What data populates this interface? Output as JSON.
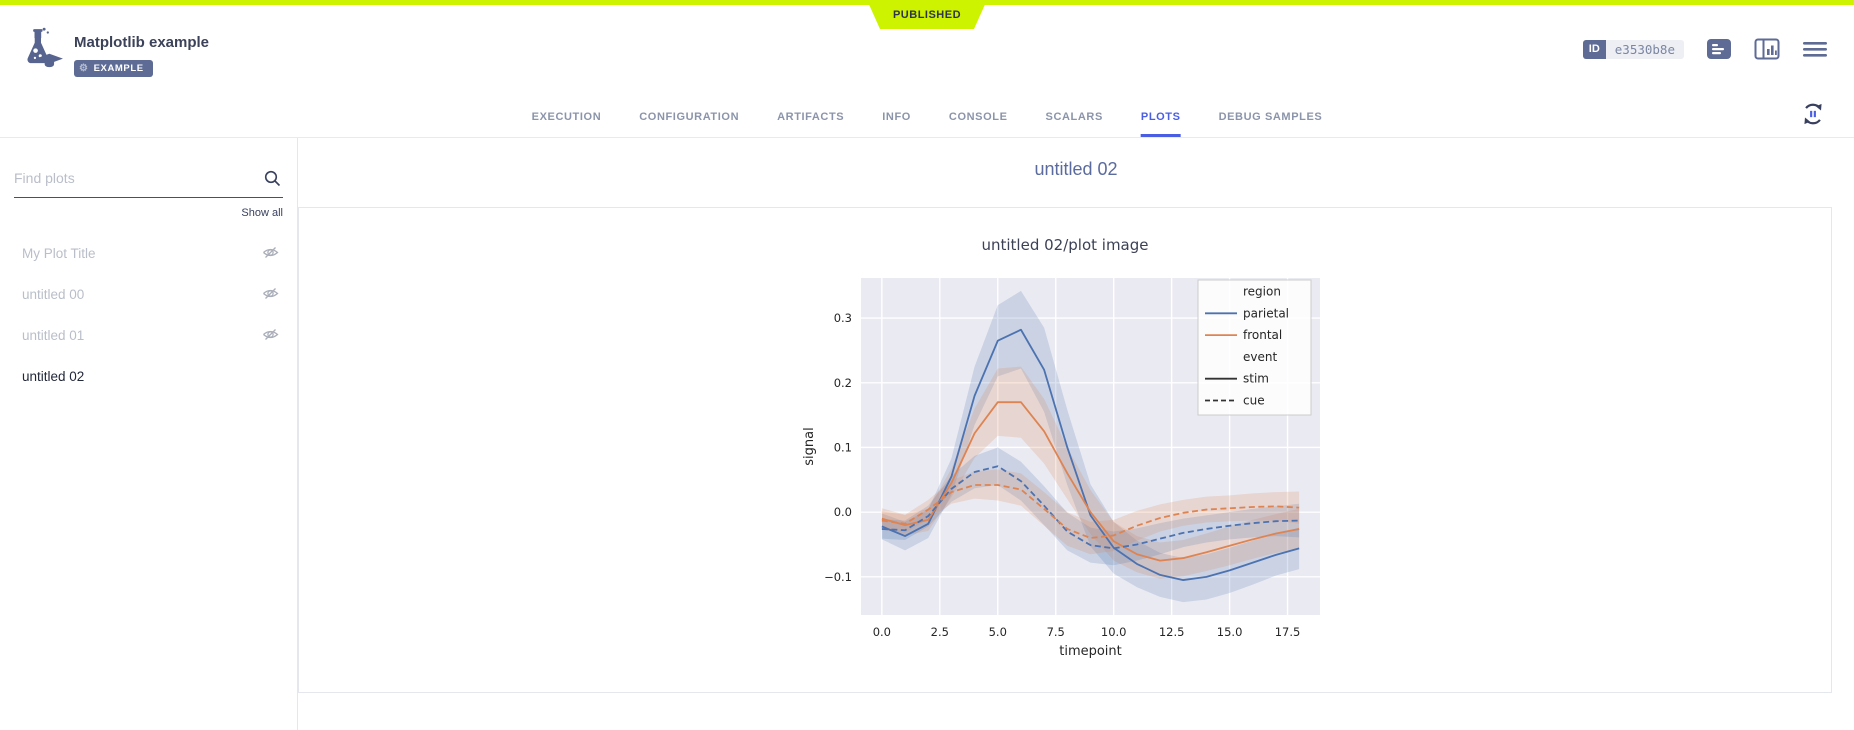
{
  "status_bar": {
    "label": "PUBLISHED",
    "color": "#cdf300"
  },
  "header": {
    "title": "Matplotlib example",
    "badge": "EXAMPLE",
    "id_label": "ID",
    "id_value": "e3530b8e",
    "icons": [
      "app-logo-flask-graduation",
      "gear-icon",
      "details-icon",
      "info-panel-icon",
      "menu-icon",
      "auto-refresh-pause-icon"
    ],
    "tabs": [
      {
        "label": "EXECUTION",
        "active": false
      },
      {
        "label": "CONFIGURATION",
        "active": false
      },
      {
        "label": "ARTIFACTS",
        "active": false
      },
      {
        "label": "INFO",
        "active": false
      },
      {
        "label": "CONSOLE",
        "active": false
      },
      {
        "label": "SCALARS",
        "active": false
      },
      {
        "label": "PLOTS",
        "active": true
      },
      {
        "label": "DEBUG SAMPLES",
        "active": false
      }
    ],
    "accent_color": "#4a5ee4"
  },
  "sidebar": {
    "search_placeholder": "Find plots",
    "show_all": "Show all",
    "items": [
      {
        "label": "My Plot Title",
        "hidden": true,
        "selected": false
      },
      {
        "label": "untitled 00",
        "hidden": true,
        "selected": false
      },
      {
        "label": "untitled 01",
        "hidden": true,
        "selected": false
      },
      {
        "label": "untitled 02",
        "hidden": false,
        "selected": true
      }
    ]
  },
  "main": {
    "section_title": "untitled 02",
    "chart_title": "untitled 02/plot image"
  },
  "chart_data": {
    "type": "line",
    "title": "untitled 02/plot image",
    "xlabel": "timepoint",
    "ylabel": "signal",
    "xlim": [
      -0.9,
      18.9
    ],
    "ylim": [
      -0.159,
      0.362
    ],
    "x_ticks": [
      0,
      2.5,
      5,
      7.5,
      10,
      12.5,
      15,
      17.5
    ],
    "x_tick_labels": [
      "0.0",
      "2.5",
      "5.0",
      "7.5",
      "10.0",
      "12.5",
      "15.0",
      "17.5"
    ],
    "y_ticks": [
      -0.1,
      0.0,
      0.1,
      0.2,
      0.3
    ],
    "y_tick_labels": [
      "−0.1",
      "0.0",
      "0.1",
      "0.2",
      "0.3"
    ],
    "grid": true,
    "plot_bg": "#eaeaf2",
    "grid_color": "#ffffff",
    "x": [
      0,
      1,
      2,
      3,
      4,
      5,
      6,
      7,
      8,
      9,
      10,
      11,
      12,
      13,
      14,
      15,
      16,
      17,
      18
    ],
    "series": [
      {
        "name": "parietal-stim",
        "region": "parietal",
        "event": "stim",
        "color": "#4C72B0",
        "dash": false,
        "values": [
          -0.022,
          -0.037,
          -0.018,
          0.055,
          0.18,
          0.265,
          0.282,
          0.22,
          0.1,
          -0.005,
          -0.055,
          -0.08,
          -0.097,
          -0.105,
          -0.1,
          -0.09,
          -0.078,
          -0.066,
          -0.056
        ],
        "ci": [
          0.02,
          0.022,
          0.022,
          0.028,
          0.045,
          0.055,
          0.06,
          0.065,
          0.058,
          0.048,
          0.04,
          0.036,
          0.034,
          0.034,
          0.035,
          0.035,
          0.034,
          0.032,
          0.032
        ]
      },
      {
        "name": "frontal-stim",
        "region": "frontal",
        "event": "stim",
        "color": "#DD8452",
        "dash": false,
        "values": [
          -0.01,
          -0.02,
          -0.012,
          0.045,
          0.122,
          0.17,
          0.17,
          0.125,
          0.06,
          0.0,
          -0.045,
          -0.065,
          -0.075,
          -0.071,
          -0.062,
          -0.052,
          -0.042,
          -0.033,
          -0.026
        ],
        "ci": [
          0.016,
          0.016,
          0.017,
          0.022,
          0.038,
          0.052,
          0.055,
          0.05,
          0.04,
          0.034,
          0.03,
          0.028,
          0.028,
          0.028,
          0.029,
          0.03,
          0.03,
          0.03,
          0.031
        ]
      },
      {
        "name": "parietal-cue",
        "region": "parietal",
        "event": "cue",
        "color": "#4C72B0",
        "dash": true,
        "values": [
          -0.026,
          -0.028,
          -0.006,
          0.036,
          0.062,
          0.071,
          0.048,
          0.01,
          -0.03,
          -0.051,
          -0.056,
          -0.05,
          -0.041,
          -0.032,
          -0.026,
          -0.021,
          -0.017,
          -0.014,
          -0.013
        ],
        "ci": [
          0.015,
          0.015,
          0.016,
          0.02,
          0.025,
          0.029,
          0.03,
          0.03,
          0.029,
          0.027,
          0.026,
          0.025,
          0.024,
          0.022,
          0.021,
          0.021,
          0.022,
          0.023,
          0.026
        ]
      },
      {
        "name": "frontal-cue",
        "region": "frontal",
        "event": "cue",
        "color": "#DD8452",
        "dash": true,
        "values": [
          -0.013,
          -0.018,
          0.004,
          0.031,
          0.042,
          0.042,
          0.035,
          0.005,
          -0.026,
          -0.04,
          -0.036,
          -0.021,
          -0.009,
          -0.001,
          0.004,
          0.006,
          0.008,
          0.009,
          0.007
        ],
        "ci": [
          0.014,
          0.014,
          0.015,
          0.018,
          0.021,
          0.024,
          0.025,
          0.026,
          0.026,
          0.025,
          0.024,
          0.023,
          0.021,
          0.02,
          0.02,
          0.02,
          0.021,
          0.022,
          0.025
        ]
      }
    ],
    "legend": {
      "position": "upper right",
      "entries": [
        {
          "label": "region",
          "type": "title"
        },
        {
          "label": "parietal",
          "type": "line",
          "color": "#4C72B0",
          "dash": false
        },
        {
          "label": "frontal",
          "type": "line",
          "color": "#DD8452",
          "dash": false
        },
        {
          "label": "event",
          "type": "title"
        },
        {
          "label": "stim",
          "type": "line",
          "color": "#333333",
          "dash": false
        },
        {
          "label": "cue",
          "type": "line",
          "color": "#333333",
          "dash": true
        }
      ]
    }
  }
}
